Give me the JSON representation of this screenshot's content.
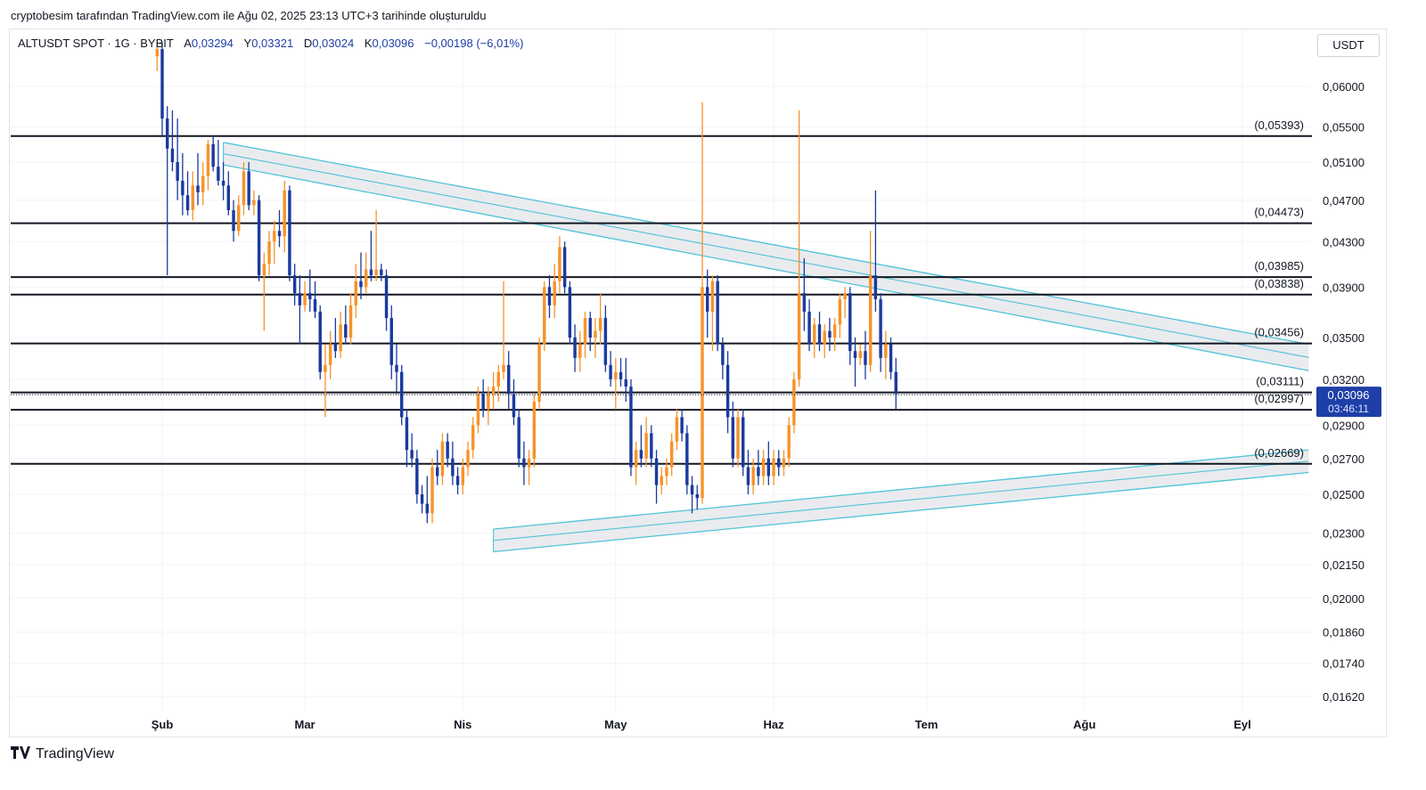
{
  "header": {
    "caption": "cryptobesim tarafından TradingView.com ile Ağu 02, 2025 23:13 UTC+3 tarihinde oluşturuldu"
  },
  "legend": {
    "symbol": "ALTUSDT SPOT · 1G · BYBIT",
    "open_key": "A",
    "open": "0,03294",
    "high_key": "Y",
    "high": "0,03321",
    "low_key": "D",
    "low": "0,03024",
    "close_key": "K",
    "close": "0,03096",
    "change": "−0,00198 (−6,01%)"
  },
  "currency_button": "USDT",
  "footer": {
    "brand": "TradingView",
    "logo_icon": "tradingview-logo-icon"
  },
  "colors": {
    "up": "#f7932a",
    "down": "#1a3a9e",
    "channel": "#4ec3d8",
    "channel_fill": "#e8e9ec",
    "level": "#131722",
    "price_tag": "#1e3fa8"
  },
  "chart_data": {
    "type": "candlestick",
    "scale": "log",
    "ylim": [
      0.0158,
      0.07
    ],
    "y_ticks": [
      {
        "value": 0.06,
        "label": "0,06000"
      },
      {
        "value": 0.055,
        "label": "0,05500"
      },
      {
        "value": 0.051,
        "label": "0,05100"
      },
      {
        "value": 0.047,
        "label": "0,04700"
      },
      {
        "value": 0.043,
        "label": "0,04300"
      },
      {
        "value": 0.039,
        "label": "0,03900"
      },
      {
        "value": 0.035,
        "label": "0,03500"
      },
      {
        "value": 0.032,
        "label": "0,03200"
      },
      {
        "value": 0.029,
        "label": "0,02900"
      },
      {
        "value": 0.027,
        "label": "0,02700"
      },
      {
        "value": 0.025,
        "label": "0,02500"
      },
      {
        "value": 0.023,
        "label": "0,02300"
      },
      {
        "value": 0.0215,
        "label": "0,02150"
      },
      {
        "value": 0.02,
        "label": "0,02000"
      },
      {
        "value": 0.0186,
        "label": "0,01860"
      },
      {
        "value": 0.0174,
        "label": "0,01740"
      },
      {
        "value": 0.0162,
        "label": "0,01620"
      }
    ],
    "x_ticks": [
      {
        "date": "2025-02-01",
        "label": "Şub"
      },
      {
        "date": "2025-03-01",
        "label": "Mar"
      },
      {
        "date": "2025-04-01",
        "label": "Nis"
      },
      {
        "date": "2025-05-01",
        "label": "May"
      },
      {
        "date": "2025-06-01",
        "label": "Haz"
      },
      {
        "date": "2025-07-01",
        "label": "Tem"
      },
      {
        "date": "2025-08-01",
        "label": "Ağu"
      },
      {
        "date": "2025-09-01",
        "label": "Eyl"
      }
    ],
    "levels": [
      {
        "value": 0.05393,
        "label": "(0,05393)"
      },
      {
        "value": 0.04473,
        "label": "(0,04473)"
      },
      {
        "value": 0.03985,
        "label": "(0,03985)"
      },
      {
        "value": 0.03838,
        "label": "(0,03838)"
      },
      {
        "value": 0.03456,
        "label": "(0,03456)"
      },
      {
        "value": 0.03111,
        "label": "(0,03111)"
      },
      {
        "value": 0.02997,
        "label": "(0,02997)"
      },
      {
        "value": 0.02669,
        "label": "(0,02669)"
      }
    ],
    "last_price": {
      "value": 0.03096,
      "label": "0,03096",
      "countdown": "03:46:11"
    },
    "channels": [
      {
        "name": "descending",
        "start": {
          "date": "2025-02-13",
          "upper": 0.0532,
          "lower": 0.0507
        },
        "end": {
          "date": "2025-09-14",
          "upper": 0.0345,
          "lower": 0.0326
        },
        "mid": true
      },
      {
        "name": "ascending",
        "start": {
          "date": "2025-04-07",
          "upper": 0.0232,
          "lower": 0.0221
        },
        "end": {
          "date": "2025-09-14",
          "upper": 0.0275,
          "lower": 0.0262
        },
        "mid": true
      }
    ],
    "candles_start_date": "2025-01-31",
    "candles": [
      {
        "o": 0.064,
        "h": 0.066,
        "l": 0.062,
        "c": 0.065
      },
      {
        "o": 0.065,
        "h": 0.066,
        "l": 0.054,
        "c": 0.056
      },
      {
        "o": 0.056,
        "h": 0.0575,
        "l": 0.04,
        "c": 0.0525
      },
      {
        "o": 0.0525,
        "h": 0.057,
        "l": 0.05,
        "c": 0.051
      },
      {
        "o": 0.051,
        "h": 0.056,
        "l": 0.047,
        "c": 0.049
      },
      {
        "o": 0.049,
        "h": 0.052,
        "l": 0.0455,
        "c": 0.0475
      },
      {
        "o": 0.0475,
        "h": 0.05,
        "l": 0.0455,
        "c": 0.046
      },
      {
        "o": 0.046,
        "h": 0.05,
        "l": 0.045,
        "c": 0.0485
      },
      {
        "o": 0.0485,
        "h": 0.052,
        "l": 0.0465,
        "c": 0.0478
      },
      {
        "o": 0.0478,
        "h": 0.051,
        "l": 0.0465,
        "c": 0.0495
      },
      {
        "o": 0.0495,
        "h": 0.0535,
        "l": 0.048,
        "c": 0.053
      },
      {
        "o": 0.053,
        "h": 0.054,
        "l": 0.05,
        "c": 0.0505
      },
      {
        "o": 0.0505,
        "h": 0.0535,
        "l": 0.0485,
        "c": 0.049
      },
      {
        "o": 0.049,
        "h": 0.051,
        "l": 0.047,
        "c": 0.0485
      },
      {
        "o": 0.0485,
        "h": 0.05,
        "l": 0.0455,
        "c": 0.046
      },
      {
        "o": 0.046,
        "h": 0.047,
        "l": 0.043,
        "c": 0.044
      },
      {
        "o": 0.044,
        "h": 0.0475,
        "l": 0.0435,
        "c": 0.0465
      },
      {
        "o": 0.0465,
        "h": 0.051,
        "l": 0.0455,
        "c": 0.05
      },
      {
        "o": 0.05,
        "h": 0.051,
        "l": 0.046,
        "c": 0.0465
      },
      {
        "o": 0.0465,
        "h": 0.048,
        "l": 0.0455,
        "c": 0.047
      },
      {
        "o": 0.047,
        "h": 0.0475,
        "l": 0.0395,
        "c": 0.04
      },
      {
        "o": 0.04,
        "h": 0.042,
        "l": 0.0355,
        "c": 0.041
      },
      {
        "o": 0.041,
        "h": 0.044,
        "l": 0.04,
        "c": 0.043
      },
      {
        "o": 0.043,
        "h": 0.045,
        "l": 0.041,
        "c": 0.044
      },
      {
        "o": 0.044,
        "h": 0.046,
        "l": 0.0425,
        "c": 0.0435
      },
      {
        "o": 0.0435,
        "h": 0.049,
        "l": 0.042,
        "c": 0.048
      },
      {
        "o": 0.048,
        "h": 0.0485,
        "l": 0.0395,
        "c": 0.04
      },
      {
        "o": 0.04,
        "h": 0.041,
        "l": 0.0375,
        "c": 0.0385
      },
      {
        "o": 0.0385,
        "h": 0.04,
        "l": 0.0345,
        "c": 0.0375
      },
      {
        "o": 0.0375,
        "h": 0.0395,
        "l": 0.037,
        "c": 0.0385
      },
      {
        "o": 0.0385,
        "h": 0.0405,
        "l": 0.037,
        "c": 0.038
      },
      {
        "o": 0.038,
        "h": 0.0395,
        "l": 0.0365,
        "c": 0.037
      },
      {
        "o": 0.037,
        "h": 0.0375,
        "l": 0.032,
        "c": 0.0325
      },
      {
        "o": 0.0325,
        "h": 0.0345,
        "l": 0.0295,
        "c": 0.033
      },
      {
        "o": 0.033,
        "h": 0.0355,
        "l": 0.032,
        "c": 0.0345
      },
      {
        "o": 0.0345,
        "h": 0.0365,
        "l": 0.0335,
        "c": 0.034
      },
      {
        "o": 0.034,
        "h": 0.037,
        "l": 0.0335,
        "c": 0.036
      },
      {
        "o": 0.036,
        "h": 0.0375,
        "l": 0.0345,
        "c": 0.035
      },
      {
        "o": 0.035,
        "h": 0.0385,
        "l": 0.0345,
        "c": 0.0375
      },
      {
        "o": 0.0375,
        "h": 0.041,
        "l": 0.0365,
        "c": 0.0395
      },
      {
        "o": 0.0395,
        "h": 0.042,
        "l": 0.038,
        "c": 0.039
      },
      {
        "o": 0.039,
        "h": 0.042,
        "l": 0.0385,
        "c": 0.0405
      },
      {
        "o": 0.0405,
        "h": 0.044,
        "l": 0.0395,
        "c": 0.04
      },
      {
        "o": 0.04,
        "h": 0.046,
        "l": 0.0395,
        "c": 0.0405
      },
      {
        "o": 0.0405,
        "h": 0.041,
        "l": 0.0395,
        "c": 0.04
      },
      {
        "o": 0.04,
        "h": 0.0405,
        "l": 0.0355,
        "c": 0.0365
      },
      {
        "o": 0.0365,
        "h": 0.0375,
        "l": 0.032,
        "c": 0.033
      },
      {
        "o": 0.033,
        "h": 0.0345,
        "l": 0.031,
        "c": 0.0325
      },
      {
        "o": 0.0325,
        "h": 0.033,
        "l": 0.029,
        "c": 0.0295
      },
      {
        "o": 0.0295,
        "h": 0.03,
        "l": 0.0265,
        "c": 0.0275
      },
      {
        "o": 0.0275,
        "h": 0.0285,
        "l": 0.0265,
        "c": 0.027
      },
      {
        "o": 0.027,
        "h": 0.0275,
        "l": 0.0245,
        "c": 0.025
      },
      {
        "o": 0.025,
        "h": 0.0255,
        "l": 0.024,
        "c": 0.0245
      },
      {
        "o": 0.0245,
        "h": 0.026,
        "l": 0.0235,
        "c": 0.024
      },
      {
        "o": 0.024,
        "h": 0.027,
        "l": 0.0235,
        "c": 0.0265
      },
      {
        "o": 0.0265,
        "h": 0.0275,
        "l": 0.0255,
        "c": 0.026
      },
      {
        "o": 0.026,
        "h": 0.0285,
        "l": 0.0255,
        "c": 0.028
      },
      {
        "o": 0.028,
        "h": 0.0285,
        "l": 0.0265,
        "c": 0.027
      },
      {
        "o": 0.027,
        "h": 0.028,
        "l": 0.0255,
        "c": 0.026
      },
      {
        "o": 0.026,
        "h": 0.0265,
        "l": 0.025,
        "c": 0.0255
      },
      {
        "o": 0.0255,
        "h": 0.027,
        "l": 0.025,
        "c": 0.0265
      },
      {
        "o": 0.0265,
        "h": 0.028,
        "l": 0.026,
        "c": 0.0275
      },
      {
        "o": 0.0275,
        "h": 0.0295,
        "l": 0.027,
        "c": 0.029
      },
      {
        "o": 0.029,
        "h": 0.0315,
        "l": 0.0285,
        "c": 0.031
      },
      {
        "o": 0.031,
        "h": 0.032,
        "l": 0.0295,
        "c": 0.03
      },
      {
        "o": 0.03,
        "h": 0.0315,
        "l": 0.029,
        "c": 0.031
      },
      {
        "o": 0.031,
        "h": 0.0325,
        "l": 0.03,
        "c": 0.0315
      },
      {
        "o": 0.0315,
        "h": 0.033,
        "l": 0.0305,
        "c": 0.0325
      },
      {
        "o": 0.0325,
        "h": 0.0395,
        "l": 0.032,
        "c": 0.033
      },
      {
        "o": 0.033,
        "h": 0.034,
        "l": 0.03,
        "c": 0.031
      },
      {
        "o": 0.031,
        "h": 0.032,
        "l": 0.029,
        "c": 0.0295
      },
      {
        "o": 0.0295,
        "h": 0.03,
        "l": 0.0265,
        "c": 0.027
      },
      {
        "o": 0.027,
        "h": 0.028,
        "l": 0.0255,
        "c": 0.0265
      },
      {
        "o": 0.0265,
        "h": 0.0275,
        "l": 0.0255,
        "c": 0.027
      },
      {
        "o": 0.027,
        "h": 0.031,
        "l": 0.0265,
        "c": 0.0305
      },
      {
        "o": 0.0305,
        "h": 0.035,
        "l": 0.03,
        "c": 0.0345
      },
      {
        "o": 0.0345,
        "h": 0.0395,
        "l": 0.034,
        "c": 0.039
      },
      {
        "o": 0.039,
        "h": 0.04,
        "l": 0.0365,
        "c": 0.0375
      },
      {
        "o": 0.0375,
        "h": 0.041,
        "l": 0.0365,
        "c": 0.0395
      },
      {
        "o": 0.0395,
        "h": 0.0435,
        "l": 0.0385,
        "c": 0.0425
      },
      {
        "o": 0.0425,
        "h": 0.043,
        "l": 0.0385,
        "c": 0.039
      },
      {
        "o": 0.039,
        "h": 0.0395,
        "l": 0.0345,
        "c": 0.035
      },
      {
        "o": 0.035,
        "h": 0.036,
        "l": 0.0325,
        "c": 0.0335
      },
      {
        "o": 0.0335,
        "h": 0.0355,
        "l": 0.0325,
        "c": 0.0345
      },
      {
        "o": 0.0345,
        "h": 0.037,
        "l": 0.0335,
        "c": 0.0365
      },
      {
        "o": 0.0365,
        "h": 0.037,
        "l": 0.034,
        "c": 0.035
      },
      {
        "o": 0.035,
        "h": 0.0365,
        "l": 0.0335,
        "c": 0.0355
      },
      {
        "o": 0.0355,
        "h": 0.0385,
        "l": 0.0345,
        "c": 0.0365
      },
      {
        "o": 0.0365,
        "h": 0.0375,
        "l": 0.0325,
        "c": 0.033
      },
      {
        "o": 0.033,
        "h": 0.034,
        "l": 0.0315,
        "c": 0.032
      },
      {
        "o": 0.032,
        "h": 0.0335,
        "l": 0.03,
        "c": 0.0325
      },
      {
        "o": 0.0325,
        "h": 0.0335,
        "l": 0.0315,
        "c": 0.032
      },
      {
        "o": 0.032,
        "h": 0.0335,
        "l": 0.0305,
        "c": 0.0315
      },
      {
        "o": 0.0315,
        "h": 0.032,
        "l": 0.026,
        "c": 0.0265
      },
      {
        "o": 0.0265,
        "h": 0.028,
        "l": 0.0255,
        "c": 0.0275
      },
      {
        "o": 0.0275,
        "h": 0.029,
        "l": 0.0265,
        "c": 0.027
      },
      {
        "o": 0.027,
        "h": 0.0295,
        "l": 0.0265,
        "c": 0.0285
      },
      {
        "o": 0.0285,
        "h": 0.029,
        "l": 0.0265,
        "c": 0.027
      },
      {
        "o": 0.027,
        "h": 0.0275,
        "l": 0.0245,
        "c": 0.0255
      },
      {
        "o": 0.0255,
        "h": 0.0265,
        "l": 0.025,
        "c": 0.026
      },
      {
        "o": 0.026,
        "h": 0.027,
        "l": 0.0255,
        "c": 0.0265
      },
      {
        "o": 0.0265,
        "h": 0.0285,
        "l": 0.026,
        "c": 0.028
      },
      {
        "o": 0.028,
        "h": 0.03,
        "l": 0.0275,
        "c": 0.0295
      },
      {
        "o": 0.0295,
        "h": 0.03,
        "l": 0.028,
        "c": 0.0285
      },
      {
        "o": 0.0285,
        "h": 0.029,
        "l": 0.025,
        "c": 0.0255
      },
      {
        "o": 0.0255,
        "h": 0.026,
        "l": 0.024,
        "c": 0.025
      },
      {
        "o": 0.025,
        "h": 0.0255,
        "l": 0.0242,
        "c": 0.0248
      },
      {
        "o": 0.0248,
        "h": 0.058,
        "l": 0.0245,
        "c": 0.039
      },
      {
        "o": 0.039,
        "h": 0.0405,
        "l": 0.035,
        "c": 0.037
      },
      {
        "o": 0.037,
        "h": 0.04,
        "l": 0.034,
        "c": 0.0395
      },
      {
        "o": 0.0395,
        "h": 0.04,
        "l": 0.034,
        "c": 0.0345
      },
      {
        "o": 0.0345,
        "h": 0.035,
        "l": 0.032,
        "c": 0.033
      },
      {
        "o": 0.033,
        "h": 0.034,
        "l": 0.0285,
        "c": 0.0295
      },
      {
        "o": 0.0295,
        "h": 0.0305,
        "l": 0.0265,
        "c": 0.027
      },
      {
        "o": 0.027,
        "h": 0.03,
        "l": 0.0265,
        "c": 0.0295
      },
      {
        "o": 0.0295,
        "h": 0.03,
        "l": 0.026,
        "c": 0.0265
      },
      {
        "o": 0.0265,
        "h": 0.0275,
        "l": 0.025,
        "c": 0.0255
      },
      {
        "o": 0.0255,
        "h": 0.027,
        "l": 0.025,
        "c": 0.0265
      },
      {
        "o": 0.0265,
        "h": 0.0275,
        "l": 0.0255,
        "c": 0.026
      },
      {
        "o": 0.026,
        "h": 0.0275,
        "l": 0.0255,
        "c": 0.027
      },
      {
        "o": 0.027,
        "h": 0.028,
        "l": 0.0255,
        "c": 0.026
      },
      {
        "o": 0.026,
        "h": 0.0275,
        "l": 0.0255,
        "c": 0.027
      },
      {
        "o": 0.027,
        "h": 0.0275,
        "l": 0.026,
        "c": 0.0265
      },
      {
        "o": 0.0265,
        "h": 0.0275,
        "l": 0.026,
        "c": 0.027
      },
      {
        "o": 0.027,
        "h": 0.0295,
        "l": 0.0265,
        "c": 0.029
      },
      {
        "o": 0.029,
        "h": 0.0325,
        "l": 0.0285,
        "c": 0.032
      },
      {
        "o": 0.032,
        "h": 0.057,
        "l": 0.0315,
        "c": 0.0385
      },
      {
        "o": 0.0385,
        "h": 0.0415,
        "l": 0.0355,
        "c": 0.037
      },
      {
        "o": 0.037,
        "h": 0.038,
        "l": 0.034,
        "c": 0.0345
      },
      {
        "o": 0.0345,
        "h": 0.0365,
        "l": 0.0335,
        "c": 0.036
      },
      {
        "o": 0.036,
        "h": 0.037,
        "l": 0.034,
        "c": 0.0345
      },
      {
        "o": 0.0345,
        "h": 0.036,
        "l": 0.0335,
        "c": 0.0355
      },
      {
        "o": 0.0355,
        "h": 0.0365,
        "l": 0.034,
        "c": 0.035
      },
      {
        "o": 0.035,
        "h": 0.0365,
        "l": 0.034,
        "c": 0.036
      },
      {
        "o": 0.036,
        "h": 0.0385,
        "l": 0.035,
        "c": 0.038
      },
      {
        "o": 0.038,
        "h": 0.039,
        "l": 0.0365,
        "c": 0.0385
      },
      {
        "o": 0.0385,
        "h": 0.039,
        "l": 0.033,
        "c": 0.034
      },
      {
        "o": 0.034,
        "h": 0.035,
        "l": 0.0315,
        "c": 0.0335
      },
      {
        "o": 0.0335,
        "h": 0.0345,
        "l": 0.033,
        "c": 0.034
      },
      {
        "o": 0.034,
        "h": 0.0355,
        "l": 0.032,
        "c": 0.033
      },
      {
        "o": 0.033,
        "h": 0.044,
        "l": 0.0325,
        "c": 0.04
      },
      {
        "o": 0.04,
        "h": 0.048,
        "l": 0.037,
        "c": 0.038
      },
      {
        "o": 0.038,
        "h": 0.0385,
        "l": 0.0325,
        "c": 0.0335
      },
      {
        "o": 0.0335,
        "h": 0.0355,
        "l": 0.032,
        "c": 0.0345
      },
      {
        "o": 0.0345,
        "h": 0.035,
        "l": 0.032,
        "c": 0.0325
      },
      {
        "o": 0.0325,
        "h": 0.0335,
        "l": 0.03,
        "c": 0.031
      }
    ]
  }
}
